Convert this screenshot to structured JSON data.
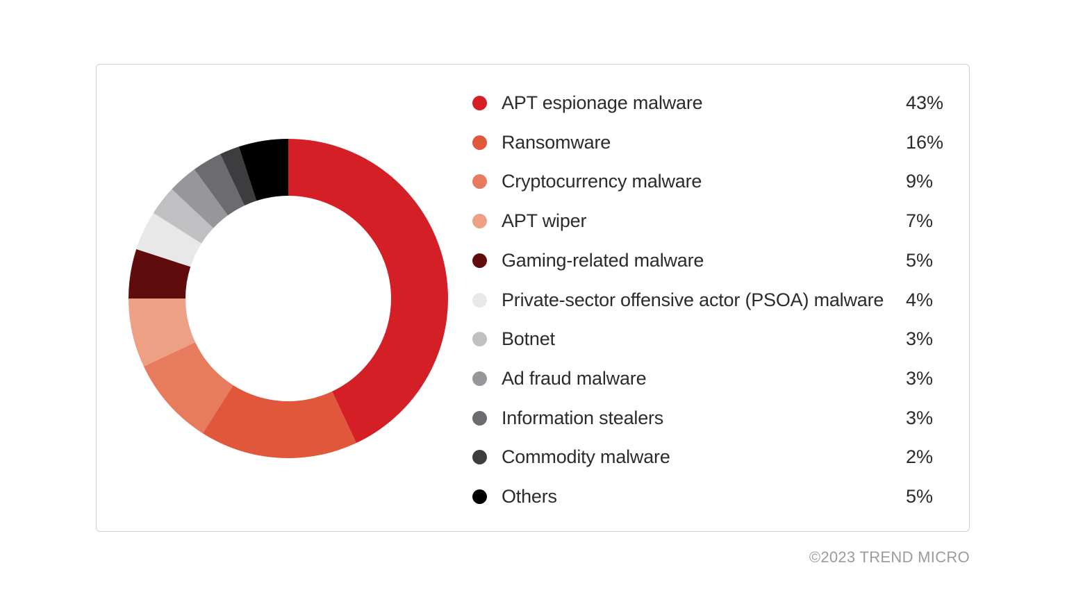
{
  "chart_data": {
    "type": "pie",
    "donut": true,
    "categories": [
      "APT espionage malware",
      "Ransomware",
      "Cryptocurrency malware",
      "APT wiper",
      "Gaming-related malware",
      "Private-sector offensive actor (PSOA) malware",
      "Botnet",
      "Ad fraud malware",
      "Information stealers",
      "Commodity malware",
      "Others"
    ],
    "values": [
      43,
      16,
      9,
      7,
      5,
      4,
      3,
      3,
      3,
      2,
      5
    ],
    "value_labels": [
      "43%",
      "16%",
      "9%",
      "7%",
      "5%",
      "4%",
      "3%",
      "3%",
      "3%",
      "2%",
      "5%"
    ],
    "colors": [
      "#d41f26",
      "#e0573b",
      "#e67b5e",
      "#eea085",
      "#610c0c",
      "#e8e8e8",
      "#c0c0c2",
      "#97979b",
      "#6c6c70",
      "#3d3d40",
      "#000000"
    ],
    "legend_position": "right"
  },
  "footer": {
    "copyright": "©2023 TREND MICRO"
  }
}
